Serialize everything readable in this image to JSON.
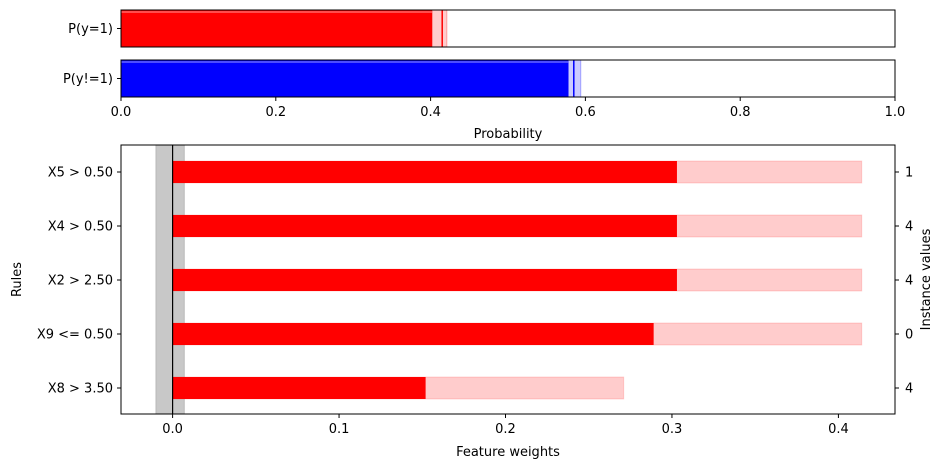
{
  "chart_data": [
    {
      "type": "bar",
      "orientation": "horizontal",
      "categories": [
        "P(y=1)",
        "P(y!=1)"
      ],
      "values": [
        0.415,
        0.585
      ],
      "intervals": [
        [
          0.402,
          0.421
        ],
        [
          0.578,
          0.594
        ]
      ],
      "colors": [
        "#ff0000",
        "#0000ff"
      ],
      "xlim": [
        0.0,
        1.0
      ],
      "xticks": [
        "0.0",
        "0.2",
        "0.4",
        "0.6",
        "0.8",
        "1.0"
      ],
      "xlabel": "Probability"
    },
    {
      "type": "bar",
      "orientation": "horizontal",
      "categories": [
        "X5 > 0.50",
        "X4 > 0.50",
        "X2 > 2.50",
        "X9 <= 0.50",
        "X8 > 3.50"
      ],
      "values": [
        0.303,
        0.303,
        0.303,
        0.289,
        0.152
      ],
      "upper_bounds": [
        0.414,
        0.414,
        0.414,
        0.414,
        0.271
      ],
      "instance_values": [
        "1",
        "4",
        "4",
        "0",
        "4"
      ],
      "baseline_band": [
        -0.01,
        0.007
      ],
      "color": "#ff0000",
      "xlim": [
        -0.031,
        0.434
      ],
      "xticks": [
        "0.0",
        "0.1",
        "0.2",
        "0.3",
        "0.4"
      ],
      "xlabel": "Feature weights",
      "ylabel": "Rules",
      "ylabel_right": "Instance values"
    }
  ]
}
